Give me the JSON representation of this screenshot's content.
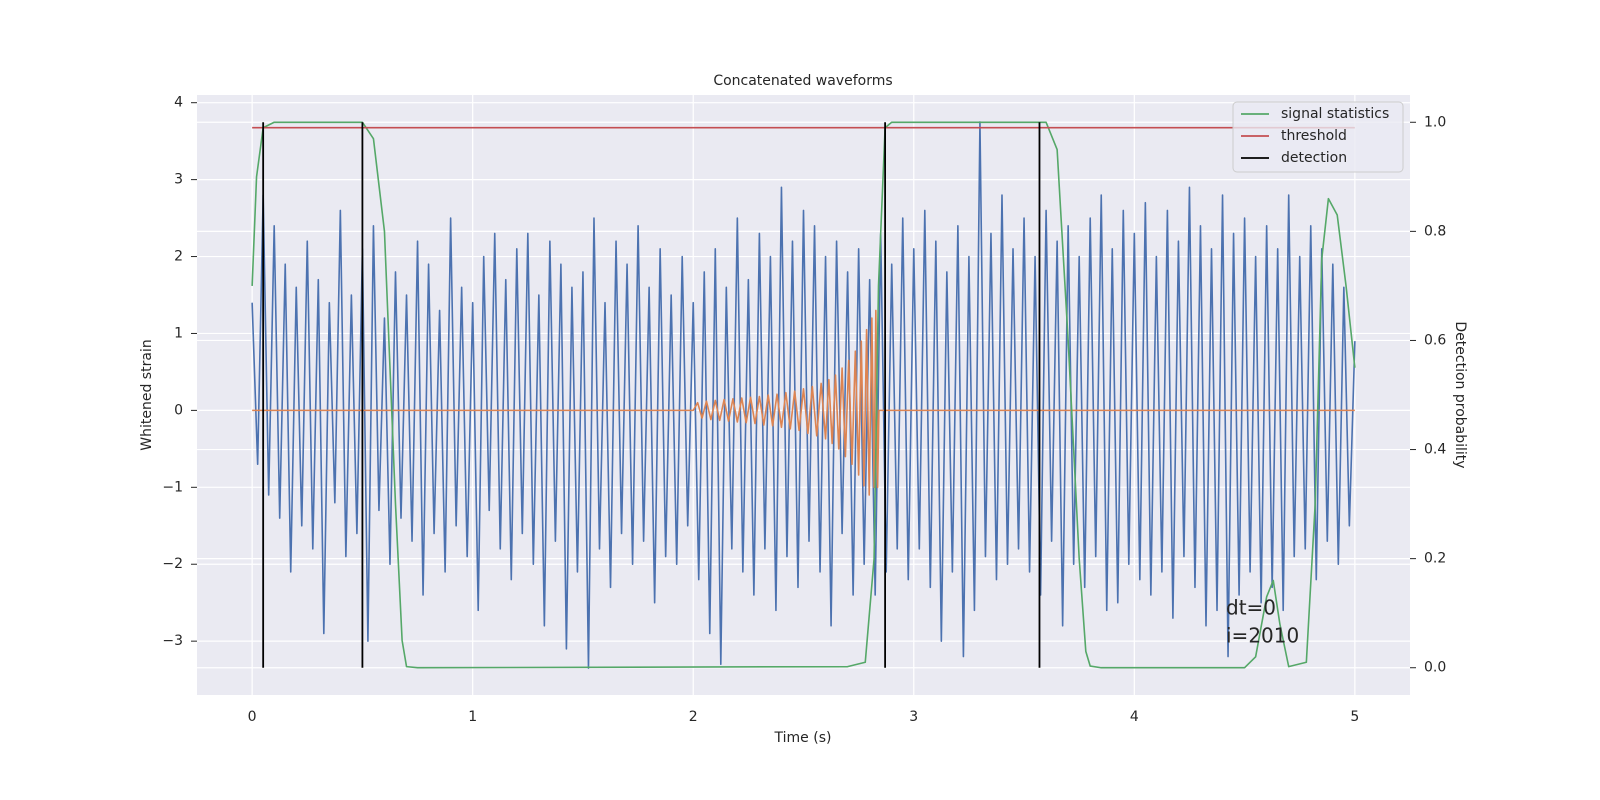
{
  "chart_data": {
    "type": "line",
    "title": "Concatenated waveforms",
    "x_label": "Time (s)",
    "y_label": "Whitened strain",
    "y2_label": "Detection probability",
    "xlim": [
      -0.25,
      5.25
    ],
    "ylim": [
      -3.7,
      4.1
    ],
    "y2lim": [
      -0.05,
      1.05
    ],
    "xticks": [
      0,
      1,
      2,
      3,
      4,
      5
    ],
    "yticks": [
      {
        "value": -3,
        "label": "−3"
      },
      {
        "value": -2,
        "label": "−2"
      },
      {
        "value": -1,
        "label": "−1"
      },
      0,
      1,
      2,
      3,
      4
    ],
    "y2ticks": [
      {
        "value": 0,
        "label": "0.0"
      },
      {
        "value": 0.2,
        "label": "0.2"
      },
      {
        "value": 0.4,
        "label": "0.4"
      },
      {
        "value": 0.6,
        "label": "0.6"
      },
      {
        "value": 0.8,
        "label": "0.8"
      },
      {
        "value": 1,
        "label": "1.0"
      }
    ],
    "grid": true,
    "legend": "upper right",
    "annotations": [
      "dt=0",
      "i=2010"
    ],
    "series": [
      {
        "color": "#4c72b0",
        "style": "line",
        "x": [
          0,
          0.025,
          0.05,
          0.075,
          0.1,
          0.125,
          0.15,
          0.175,
          0.2,
          0.225,
          0.25,
          0.275,
          0.3,
          0.325,
          0.35,
          0.375,
          0.4,
          0.425,
          0.45,
          0.475,
          0.5,
          0.525,
          0.55,
          0.575,
          0.6,
          0.625,
          0.65,
          0.675,
          0.7,
          0.725,
          0.75,
          0.775,
          0.8,
          0.825,
          0.85,
          0.875,
          0.9,
          0.925,
          0.95,
          0.975,
          1,
          1.025,
          1.05,
          1.075,
          1.1,
          1.125,
          1.15,
          1.175,
          1.2,
          1.225,
          1.25,
          1.275,
          1.3,
          1.325,
          1.35,
          1.375,
          1.4,
          1.425,
          1.45,
          1.475,
          1.5,
          1.525,
          1.55,
          1.575,
          1.6,
          1.625,
          1.65,
          1.675,
          1.7,
          1.725,
          1.75,
          1.775,
          1.8,
          1.825,
          1.85,
          1.875,
          1.9,
          1.925,
          1.95,
          1.975,
          2,
          2.025,
          2.05,
          2.075,
          2.1,
          2.125,
          2.15,
          2.175,
          2.2,
          2.225,
          2.25,
          2.275,
          2.3,
          2.325,
          2.35,
          2.375,
          2.4,
          2.425,
          2.45,
          2.475,
          2.5,
          2.525,
          2.55,
          2.575,
          2.6,
          2.625,
          2.65,
          2.675,
          2.7,
          2.725,
          2.75,
          2.775,
          2.8,
          2.825,
          2.85,
          2.875,
          2.9,
          2.925,
          2.95,
          2.975,
          3,
          3.025,
          3.05,
          3.075,
          3.1,
          3.125,
          3.15,
          3.175,
          3.2,
          3.225,
          3.25,
          3.275,
          3.3,
          3.325,
          3.35,
          3.375,
          3.4,
          3.425,
          3.45,
          3.475,
          3.5,
          3.525,
          3.55,
          3.575,
          3.6,
          3.625,
          3.65,
          3.675,
          3.7,
          3.725,
          3.75,
          3.775,
          3.8,
          3.825,
          3.85,
          3.875,
          3.9,
          3.925,
          3.95,
          3.975,
          4,
          4.025,
          4.05,
          4.075,
          4.1,
          4.125,
          4.15,
          4.175,
          4.2,
          4.225,
          4.25,
          4.275,
          4.3,
          4.325,
          4.35,
          4.375,
          4.4,
          4.425,
          4.45,
          4.475,
          4.5,
          4.525,
          4.55,
          4.575,
          4.6,
          4.625,
          4.65,
          4.675,
          4.7,
          4.725,
          4.75,
          4.775,
          4.8,
          4.825,
          4.85,
          4.875,
          4.9,
          4.925,
          4.95,
          4.975,
          5
        ],
        "values": [
          1.4,
          -0.7,
          2.8,
          -1.1,
          2.4,
          -1.4,
          1.9,
          -2.1,
          1.6,
          -1.5,
          2.2,
          -1.8,
          1.7,
          -2.9,
          1.4,
          -1.2,
          2.6,
          -1.9,
          1.5,
          -1.6,
          2.1,
          -3.0,
          2.4,
          -1.3,
          1.2,
          -2.0,
          1.8,
          -1.4,
          1.5,
          -1.7,
          2.2,
          -2.4,
          1.9,
          -1.6,
          1.3,
          -2.1,
          2.5,
          -1.5,
          1.6,
          -1.9,
          1.4,
          -2.6,
          2.0,
          -1.3,
          2.3,
          -1.8,
          1.7,
          -2.2,
          2.1,
          -1.6,
          2.3,
          -2.0,
          1.5,
          -2.8,
          2.2,
          -1.7,
          1.9,
          -3.1,
          1.6,
          -2.1,
          1.8,
          -3.35,
          2.5,
          -1.8,
          1.4,
          -2.3,
          2.2,
          -1.6,
          1.9,
          -2.0,
          2.4,
          -1.7,
          1.6,
          -2.5,
          2.1,
          -1.9,
          1.5,
          -2.0,
          2.0,
          -1.5,
          1.4,
          -2.2,
          1.8,
          -2.9,
          2.1,
          -3.3,
          1.6,
          -1.8,
          2.5,
          -2.1,
          1.7,
          -2.4,
          2.3,
          -1.8,
          2.0,
          -2.6,
          2.9,
          -1.9,
          2.2,
          -2.3,
          2.6,
          -1.7,
          2.4,
          -2.1,
          2.0,
          -2.8,
          2.2,
          -1.6,
          1.8,
          -2.4,
          2.1,
          -2.0,
          1.7,
          -2.4,
          2.3,
          -2.1,
          1.9,
          -1.8,
          2.5,
          -2.2,
          2.1,
          -1.8,
          2.6,
          -2.3,
          2.2,
          -3.0,
          1.8,
          -2.1,
          2.4,
          -3.2,
          2.0,
          -2.6,
          3.75,
          -1.9,
          2.3,
          -2.2,
          2.8,
          -2.0,
          2.1,
          -1.8,
          2.5,
          -2.1,
          2.0,
          -2.4,
          2.6,
          -1.7,
          2.2,
          -2.8,
          2.4,
          -2.0,
          2.0,
          -2.3,
          2.5,
          -1.9,
          2.8,
          -2.6,
          2.1,
          -2.5,
          2.6,
          -2.0,
          2.3,
          -2.2,
          2.7,
          -2.4,
          2.0,
          -2.1,
          2.6,
          -2.7,
          2.2,
          -1.9,
          2.9,
          -2.3,
          2.4,
          -2.8,
          2.1,
          -2.6,
          2.8,
          -3.2,
          2.3,
          -2.4,
          2.5,
          -2.1,
          2.0,
          -2.5,
          2.4,
          -2.3,
          2.1,
          -2.6,
          2.8,
          -1.9,
          2.0,
          -1.8,
          2.4,
          -2.2,
          2.1,
          -1.7,
          1.9,
          -2.0,
          1.6,
          -1.5,
          0.9
        ]
      },
      {
        "color": "#dd8452",
        "style": "line",
        "x": [
          0,
          2.0,
          2.02,
          2.04,
          2.06,
          2.08,
          2.1,
          2.12,
          2.14,
          2.16,
          2.18,
          2.2,
          2.22,
          2.24,
          2.26,
          2.28,
          2.3,
          2.32,
          2.34,
          2.36,
          2.38,
          2.4,
          2.42,
          2.44,
          2.46,
          2.48,
          2.5,
          2.52,
          2.54,
          2.56,
          2.58,
          2.6,
          2.615,
          2.63,
          2.645,
          2.66,
          2.675,
          2.69,
          2.705,
          2.72,
          2.735,
          2.75,
          2.762,
          2.774,
          2.786,
          2.798,
          2.81,
          2.82,
          2.828,
          2.836,
          2.842,
          5.0
        ],
        "values": [
          0,
          0,
          0.1,
          -0.1,
          0.12,
          -0.12,
          0.13,
          -0.13,
          0.14,
          -0.14,
          0.15,
          -0.15,
          0.16,
          -0.16,
          0.17,
          -0.17,
          0.18,
          -0.19,
          0.2,
          -0.2,
          0.21,
          -0.22,
          0.23,
          -0.24,
          0.25,
          -0.26,
          0.28,
          -0.3,
          0.31,
          -0.33,
          0.35,
          -0.37,
          0.4,
          -0.43,
          0.46,
          -0.5,
          0.55,
          -0.6,
          0.65,
          -0.7,
          0.77,
          -0.84,
          0.9,
          -0.98,
          1.05,
          -1.1,
          1.2,
          -1.0,
          1.3,
          -1.0,
          0,
          0
        ]
      },
      {
        "name": "signal statistics",
        "color": "#55a868",
        "style": "line",
        "axis": "y2",
        "x": [
          0,
          0.02,
          0.05,
          0.1,
          0.5,
          0.55,
          0.6,
          0.65,
          0.68,
          0.7,
          0.75,
          2.7,
          2.78,
          2.82,
          2.84,
          2.87,
          2.9,
          3.6,
          3.65,
          3.7,
          3.75,
          3.78,
          3.8,
          3.85,
          4.5,
          4.55,
          4.6,
          4.63,
          4.66,
          4.7,
          4.78,
          4.82,
          4.85,
          4.88,
          4.92,
          4.96,
          5.0
        ],
        "values": [
          0.7,
          0.9,
          0.99,
          1.0,
          1.0,
          0.97,
          0.8,
          0.3,
          0.05,
          0.002,
          0,
          0.002,
          0.01,
          0.2,
          0.7,
          0.99,
          1.0,
          1.0,
          0.95,
          0.6,
          0.2,
          0.03,
          0.003,
          0,
          0,
          0.02,
          0.13,
          0.16,
          0.08,
          0.002,
          0.01,
          0.3,
          0.75,
          0.86,
          0.83,
          0.7,
          0.55
        ]
      },
      {
        "name": "threshold",
        "color": "#c44e52",
        "style": "line",
        "axis": "y2",
        "x": [
          0,
          5
        ],
        "values": [
          0.99,
          0.99
        ]
      },
      {
        "name": "detection",
        "color": "#000000",
        "style": "vlines",
        "axis": "y2",
        "x": [
          0.05,
          0.5,
          2.87,
          3.57
        ],
        "low": [
          0,
          0,
          0,
          0
        ],
        "high": [
          1,
          1,
          1,
          1
        ]
      }
    ]
  }
}
